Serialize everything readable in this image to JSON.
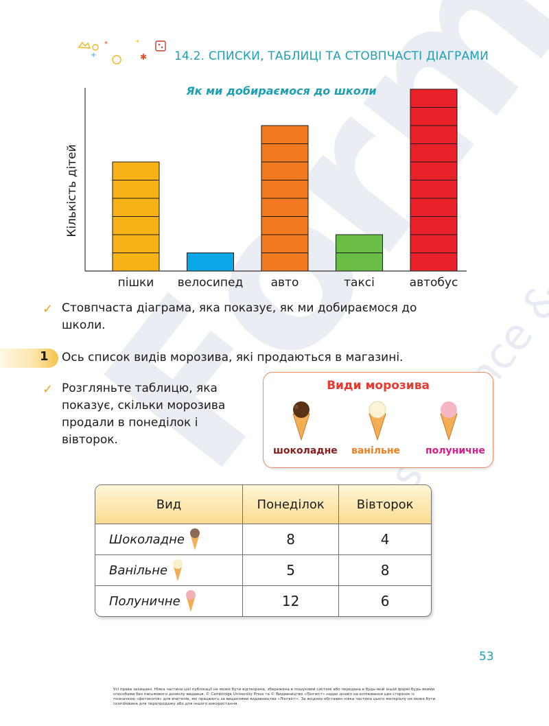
{
  "section": {
    "title": "14.2. СПИСКИ, ТАБЛИЦІ ТА СТОВПЧАСТІ ДІАГРАМИ"
  },
  "chart_data": {
    "type": "bar",
    "title": "Як ми добираємося до школи",
    "ylabel": "Кількість дітей",
    "xlabel": "",
    "categories": [
      "пішки",
      "велосипед",
      "авто",
      "таксі",
      "автобус"
    ],
    "values": [
      6,
      1,
      8,
      2,
      10
    ],
    "colors": [
      "#f7b217",
      "#0ba6e6",
      "#f47a20",
      "#6abd45",
      "#e9222a"
    ],
    "grid": false
  },
  "text": {
    "chart_caption": "Стовпчаста діаграма, яка показує, як ми добираємося до школи.",
    "task_number": "1",
    "task_text": "Ось список видів морозива, які продаються в магазині.",
    "table_intro": "Розгляньте таблицю, яка показує, скільки морозива продали в понеділок і вівторок."
  },
  "ice_card": {
    "title": "Види морозива",
    "items": [
      {
        "label": "шоколадне",
        "color": "#8a1c1c",
        "scoop": "#5a3216"
      },
      {
        "label": "ванільне",
        "color": "#f0801e",
        "scoop": "#fbf3d6"
      },
      {
        "label": "полуничне",
        "color": "#d81e8c",
        "scoop": "#f6b6c3"
      }
    ]
  },
  "table": {
    "headers": [
      "Вид",
      "Понеділок",
      "Вівторок"
    ],
    "rows": [
      {
        "kind": "Шоколадне",
        "mon": "8",
        "tue": "4"
      },
      {
        "kind": "Ванільне",
        "mon": "5",
        "tue": "8"
      },
      {
        "kind": "Полуничне",
        "mon": "12",
        "tue": "6"
      }
    ]
  },
  "page_number": "53",
  "footer": "Усі права захищені. Ніяка частина цієї публікації не може бути відтворена, збережена в пошуковій системі або передана в будь-якій іншій формі будь-якими способами без письмового дозволу видавця. © Cambridge University Press та © Видавництво «Лінгвіст» надає дозвіл на копіювання цих сторінок із позначкою «фотокопія» для вчителів, які працюють за виданнями видавництва «Лінгвіст». За жодних обставин ніяка частина цього матеріалу не може бути скопійована для перепродажу або для іншого використання.",
  "watermark": {
    "main": "Formula",
    "sub": "Maths Science & ICT"
  }
}
